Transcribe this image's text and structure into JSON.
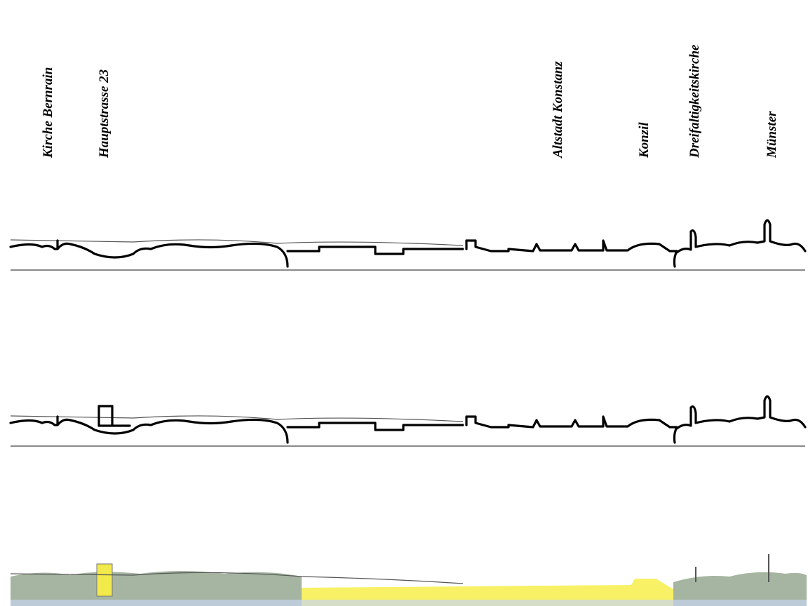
{
  "labels": [
    "Kirche Bernrain",
    "Hauptstrasse 23",
    "Altstadt Konstanz",
    "Konzil",
    "Dreifaltigkeitskirche",
    "Münster"
  ]
}
